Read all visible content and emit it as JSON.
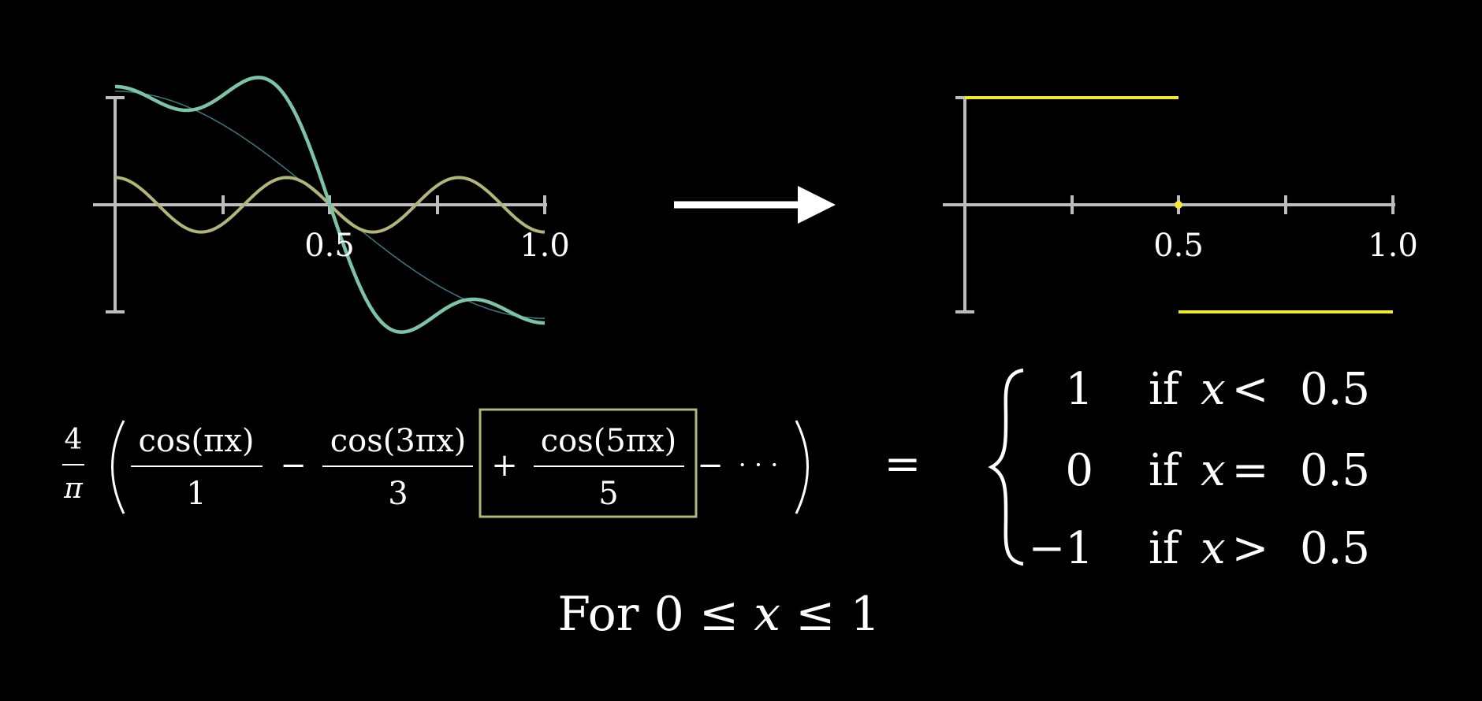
{
  "left_graph": {
    "tick_labels": [
      "0.5",
      "1.0"
    ],
    "colors": {
      "axis": "#bdbdbd",
      "partial_sum": "#7fc3a6",
      "cos5_term": "#b3b47d",
      "target_thin": "#3f6f78"
    }
  },
  "right_graph": {
    "tick_labels": [
      "0.5",
      "1.0"
    ],
    "colors": {
      "axis": "#bdbdbd",
      "step": "#f2e636"
    }
  },
  "equation": {
    "coef_num": "4",
    "coef_den": "π",
    "term1_num": "cos(πx)",
    "term1_den": "1",
    "minus1": "−",
    "term2_num": "cos(3πx)",
    "term2_den": "3",
    "plus": "+",
    "term3_num": "cos(5πx)",
    "term3_den": "5",
    "minus2": "−",
    "ellipsis": "· · ·",
    "equals": "=",
    "box_color": "#b3b47d"
  },
  "piecewise": {
    "rows": [
      {
        "value": "1",
        "cond_if": "if",
        "cond_var": "x",
        "cond_rel": "<",
        "cond_num": "0.5"
      },
      {
        "value": "0",
        "cond_if": "if",
        "cond_var": "x",
        "cond_rel": "=",
        "cond_num": "0.5"
      },
      {
        "value": "−1",
        "cond_if": "if",
        "cond_var": "x",
        "cond_rel": ">",
        "cond_num": "0.5"
      }
    ]
  },
  "domain": {
    "word": "For",
    "lower": "0",
    "rel1": "≤",
    "var": "x",
    "rel2": "≤",
    "upper": "1"
  }
}
